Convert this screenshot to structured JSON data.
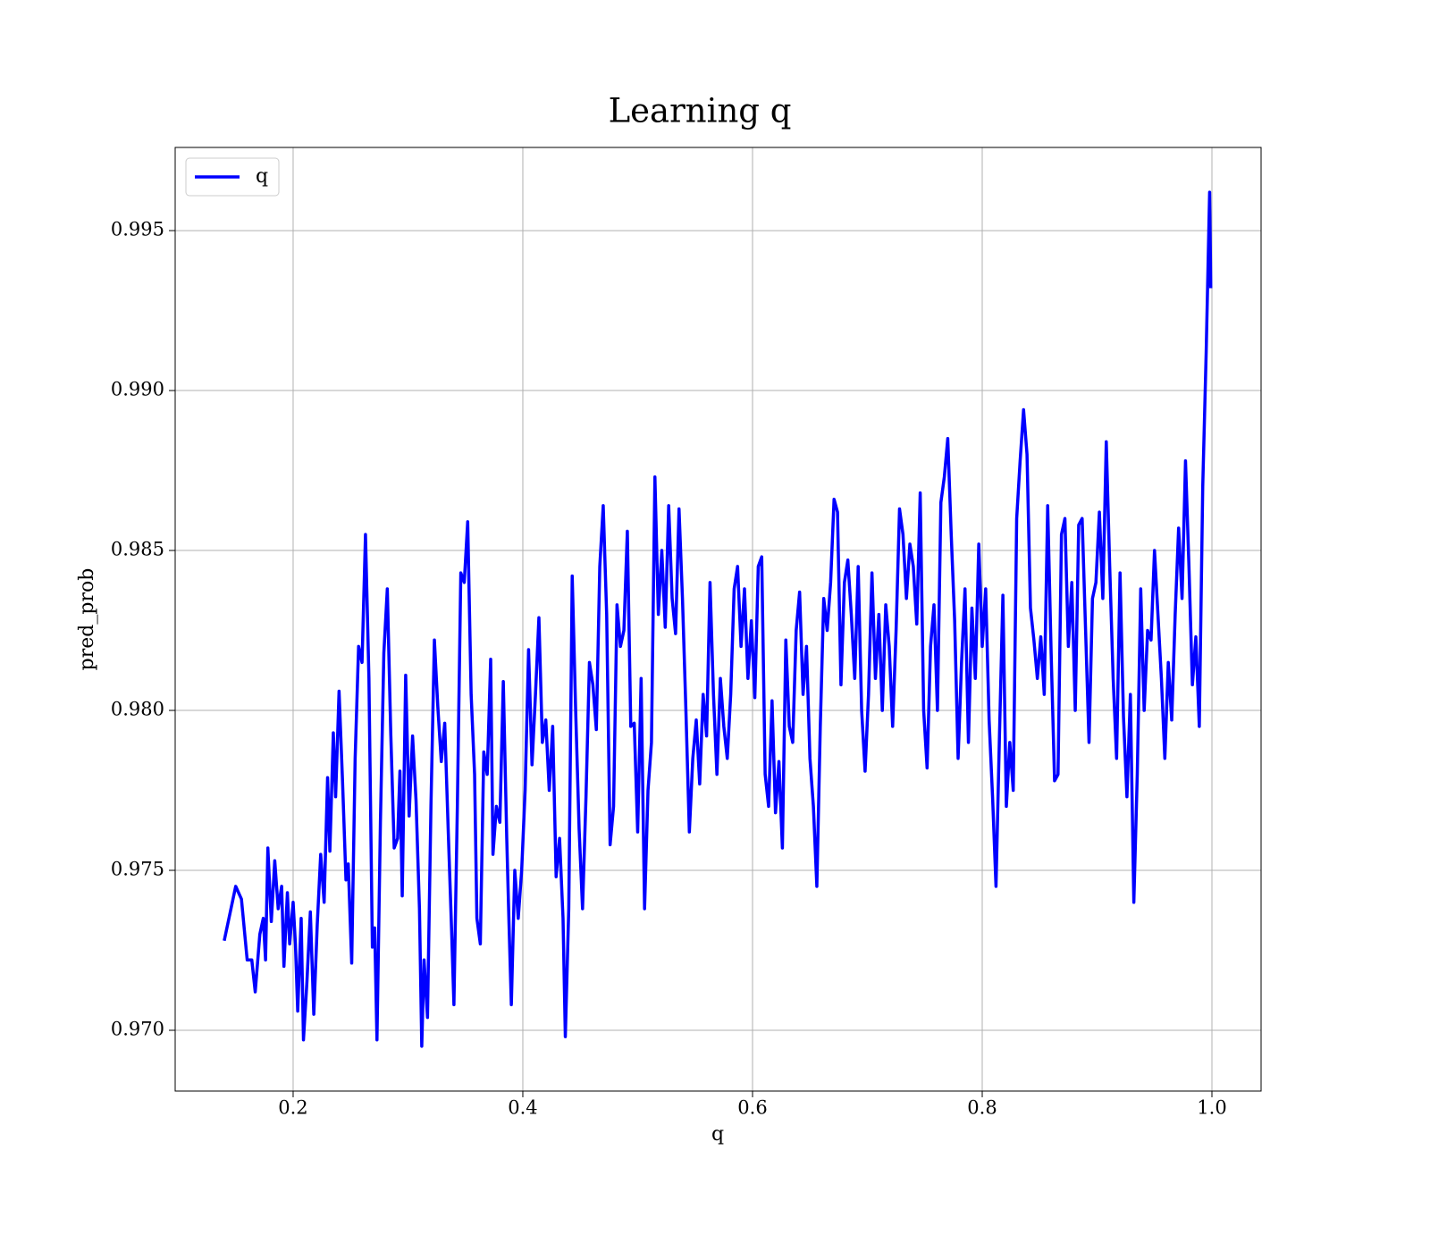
{
  "chart_data": {
    "type": "line",
    "title": "Learning q",
    "x_label": "q",
    "y_label": "pred_prob",
    "x": [
      0.14,
      0.15,
      0.155,
      0.16,
      0.164,
      0.167,
      0.171,
      0.174,
      0.176,
      0.178,
      0.181,
      0.184,
      0.187,
      0.19,
      0.192,
      0.195,
      0.197,
      0.2,
      0.202,
      0.204,
      0.207,
      0.209,
      0.212,
      0.215,
      0.218,
      0.221,
      0.224,
      0.227,
      0.23,
      0.232,
      0.235,
      0.237,
      0.24,
      0.243,
      0.246,
      0.248,
      0.251,
      0.254,
      0.257,
      0.26,
      0.263,
      0.266,
      0.269,
      0.271,
      0.273,
      0.276,
      0.279,
      0.282,
      0.285,
      0.288,
      0.291,
      0.293,
      0.295,
      0.298,
      0.301,
      0.304,
      0.307,
      0.31,
      0.312,
      0.314,
      0.317,
      0.32,
      0.323,
      0.326,
      0.329,
      0.332,
      0.335,
      0.338,
      0.34,
      0.343,
      0.346,
      0.349,
      0.352,
      0.355,
      0.358,
      0.36,
      0.363,
      0.366,
      0.369,
      0.372,
      0.374,
      0.377,
      0.38,
      0.383,
      0.386,
      0.388,
      0.39,
      0.393,
      0.396,
      0.399,
      0.402,
      0.405,
      0.408,
      0.411,
      0.414,
      0.417,
      0.42,
      0.423,
      0.426,
      0.429,
      0.432,
      0.435,
      0.437,
      0.44,
      0.443,
      0.446,
      0.449,
      0.452,
      0.455,
      0.458,
      0.461,
      0.464,
      0.467,
      0.47,
      0.473,
      0.476,
      0.479,
      0.482,
      0.485,
      0.488,
      0.491,
      0.494,
      0.497,
      0.5,
      0.503,
      0.506,
      0.509,
      0.512,
      0.515,
      0.518,
      0.521,
      0.524,
      0.527,
      0.53,
      0.533,
      0.536,
      0.539,
      0.542,
      0.545,
      0.548,
      0.551,
      0.554,
      0.557,
      0.56,
      0.563,
      0.566,
      0.569,
      0.572,
      0.575,
      0.578,
      0.581,
      0.584,
      0.587,
      0.59,
      0.593,
      0.596,
      0.599,
      0.602,
      0.605,
      0.608,
      0.611,
      0.614,
      0.617,
      0.62,
      0.623,
      0.626,
      0.629,
      0.632,
      0.635,
      0.638,
      0.641,
      0.644,
      0.647,
      0.65,
      0.653,
      0.656,
      0.659,
      0.662,
      0.665,
      0.668,
      0.671,
      0.674,
      0.677,
      0.68,
      0.683,
      0.686,
      0.689,
      0.692,
      0.695,
      0.698,
      0.701,
      0.704,
      0.707,
      0.71,
      0.713,
      0.716,
      0.719,
      0.722,
      0.725,
      0.728,
      0.731,
      0.734,
      0.737,
      0.74,
      0.743,
      0.746,
      0.749,
      0.752,
      0.755,
      0.758,
      0.761,
      0.764,
      0.767,
      0.77,
      0.773,
      0.776,
      0.779,
      0.782,
      0.785,
      0.788,
      0.791,
      0.794,
      0.797,
      0.8,
      0.803,
      0.806,
      0.809,
      0.812,
      0.815,
      0.818,
      0.821,
      0.824,
      0.827,
      0.83,
      0.833,
      0.836,
      0.839,
      0.842,
      0.845,
      0.848,
      0.851,
      0.854,
      0.857,
      0.86,
      0.863,
      0.866,
      0.869,
      0.872,
      0.875,
      0.878,
      0.881,
      0.884,
      0.887,
      0.89,
      0.893,
      0.896,
      0.899,
      0.902,
      0.905,
      0.908,
      0.911,
      0.914,
      0.917,
      0.92,
      0.923,
      0.926,
      0.929,
      0.932,
      0.935,
      0.938,
      0.941,
      0.944,
      0.947,
      0.95,
      0.953,
      0.956,
      0.959,
      0.962,
      0.965,
      0.968,
      0.971,
      0.974,
      0.977,
      0.98,
      0.983,
      0.986,
      0.989,
      0.992,
      0.995,
      0.998,
      0.999
    ],
    "series": [
      {
        "name": "q",
        "color": "#0000ff",
        "values": [
          0.9728,
          0.9745,
          0.9741,
          0.9722,
          0.9722,
          0.9712,
          0.973,
          0.9735,
          0.9722,
          0.9757,
          0.9734,
          0.9753,
          0.9738,
          0.9745,
          0.972,
          0.9743,
          0.9727,
          0.974,
          0.9727,
          0.9706,
          0.9735,
          0.9697,
          0.9715,
          0.9737,
          0.9705,
          0.9733,
          0.9755,
          0.974,
          0.9779,
          0.9756,
          0.9793,
          0.9773,
          0.9806,
          0.9778,
          0.9747,
          0.9752,
          0.9721,
          0.9785,
          0.982,
          0.9815,
          0.9855,
          0.981,
          0.9726,
          0.9732,
          0.9697,
          0.9765,
          0.9818,
          0.9838,
          0.9793,
          0.9757,
          0.976,
          0.9781,
          0.9742,
          0.9811,
          0.9767,
          0.9792,
          0.9772,
          0.9738,
          0.9695,
          0.9722,
          0.9704,
          0.977,
          0.9822,
          0.9801,
          0.9784,
          0.9796,
          0.9763,
          0.9731,
          0.9708,
          0.977,
          0.9843,
          0.984,
          0.9859,
          0.9805,
          0.978,
          0.9735,
          0.9727,
          0.9787,
          0.978,
          0.9816,
          0.9755,
          0.977,
          0.9765,
          0.9809,
          0.976,
          0.9733,
          0.9708,
          0.975,
          0.9735,
          0.975,
          0.9775,
          0.9819,
          0.9783,
          0.9805,
          0.9829,
          0.979,
          0.9797,
          0.9775,
          0.9795,
          0.9748,
          0.976,
          0.9735,
          0.9698,
          0.9738,
          0.9842,
          0.98,
          0.9763,
          0.9738,
          0.9773,
          0.9815,
          0.9808,
          0.9794,
          0.9845,
          0.9864,
          0.983,
          0.9758,
          0.977,
          0.9833,
          0.982,
          0.9825,
          0.9856,
          0.9795,
          0.9796,
          0.9762,
          0.981,
          0.9738,
          0.9775,
          0.979,
          0.9873,
          0.983,
          0.985,
          0.9826,
          0.9864,
          0.9835,
          0.9824,
          0.9863,
          0.9835,
          0.98,
          0.9762,
          0.9785,
          0.9797,
          0.9777,
          0.9805,
          0.9792,
          0.984,
          0.9805,
          0.978,
          0.981,
          0.9795,
          0.9785,
          0.9805,
          0.9838,
          0.9845,
          0.982,
          0.9838,
          0.981,
          0.9828,
          0.9804,
          0.9845,
          0.9848,
          0.978,
          0.977,
          0.9803,
          0.9768,
          0.9784,
          0.9757,
          0.9822,
          0.9795,
          0.979,
          0.9825,
          0.9837,
          0.9805,
          0.982,
          0.9785,
          0.977,
          0.9745,
          0.9795,
          0.9835,
          0.9825,
          0.984,
          0.9866,
          0.9862,
          0.9808,
          0.984,
          0.9847,
          0.983,
          0.981,
          0.9845,
          0.98,
          0.9781,
          0.9805,
          0.9843,
          0.981,
          0.983,
          0.98,
          0.9833,
          0.982,
          0.9795,
          0.9825,
          0.9863,
          0.9855,
          0.9835,
          0.9852,
          0.9845,
          0.9827,
          0.9868,
          0.98,
          0.9782,
          0.982,
          0.9833,
          0.98,
          0.9865,
          0.9873,
          0.9885,
          0.9855,
          0.9828,
          0.9785,
          0.9815,
          0.9838,
          0.979,
          0.9832,
          0.981,
          0.9852,
          0.982,
          0.9838,
          0.9797,
          0.9773,
          0.9745,
          0.9792,
          0.9836,
          0.977,
          0.979,
          0.9775,
          0.986,
          0.9878,
          0.9894,
          0.988,
          0.9832,
          0.9822,
          0.981,
          0.9823,
          0.9805,
          0.9864,
          0.9818,
          0.9778,
          0.978,
          0.9855,
          0.986,
          0.982,
          0.984,
          0.98,
          0.9858,
          0.986,
          0.9825,
          0.979,
          0.9835,
          0.984,
          0.9862,
          0.9835,
          0.9884,
          0.9845,
          0.981,
          0.9785,
          0.9843,
          0.9798,
          0.9773,
          0.9805,
          0.974,
          0.978,
          0.9838,
          0.98,
          0.9825,
          0.9822,
          0.985,
          0.983,
          0.981,
          0.9785,
          0.9815,
          0.9797,
          0.983,
          0.9857,
          0.9835,
          0.9878,
          0.9845,
          0.9808,
          0.9823,
          0.9795,
          0.987,
          0.9912,
          0.9962,
          0.9932
        ]
      }
    ],
    "xlim": [
      0.0973,
      1.0428
    ],
    "ylim": [
      0.9681,
      0.9976
    ],
    "xticks": [
      0.2,
      0.4,
      0.6,
      0.8,
      {
        "value": 1,
        "label": "1.0"
      }
    ],
    "yticks": [
      {
        "value": 0.97,
        "label": "0.970"
      },
      0.975,
      {
        "value": 0.98,
        "label": "0.980"
      },
      0.985,
      {
        "value": 0.99,
        "label": "0.990"
      },
      0.995
    ],
    "grid": true,
    "legend": "upper left"
  }
}
